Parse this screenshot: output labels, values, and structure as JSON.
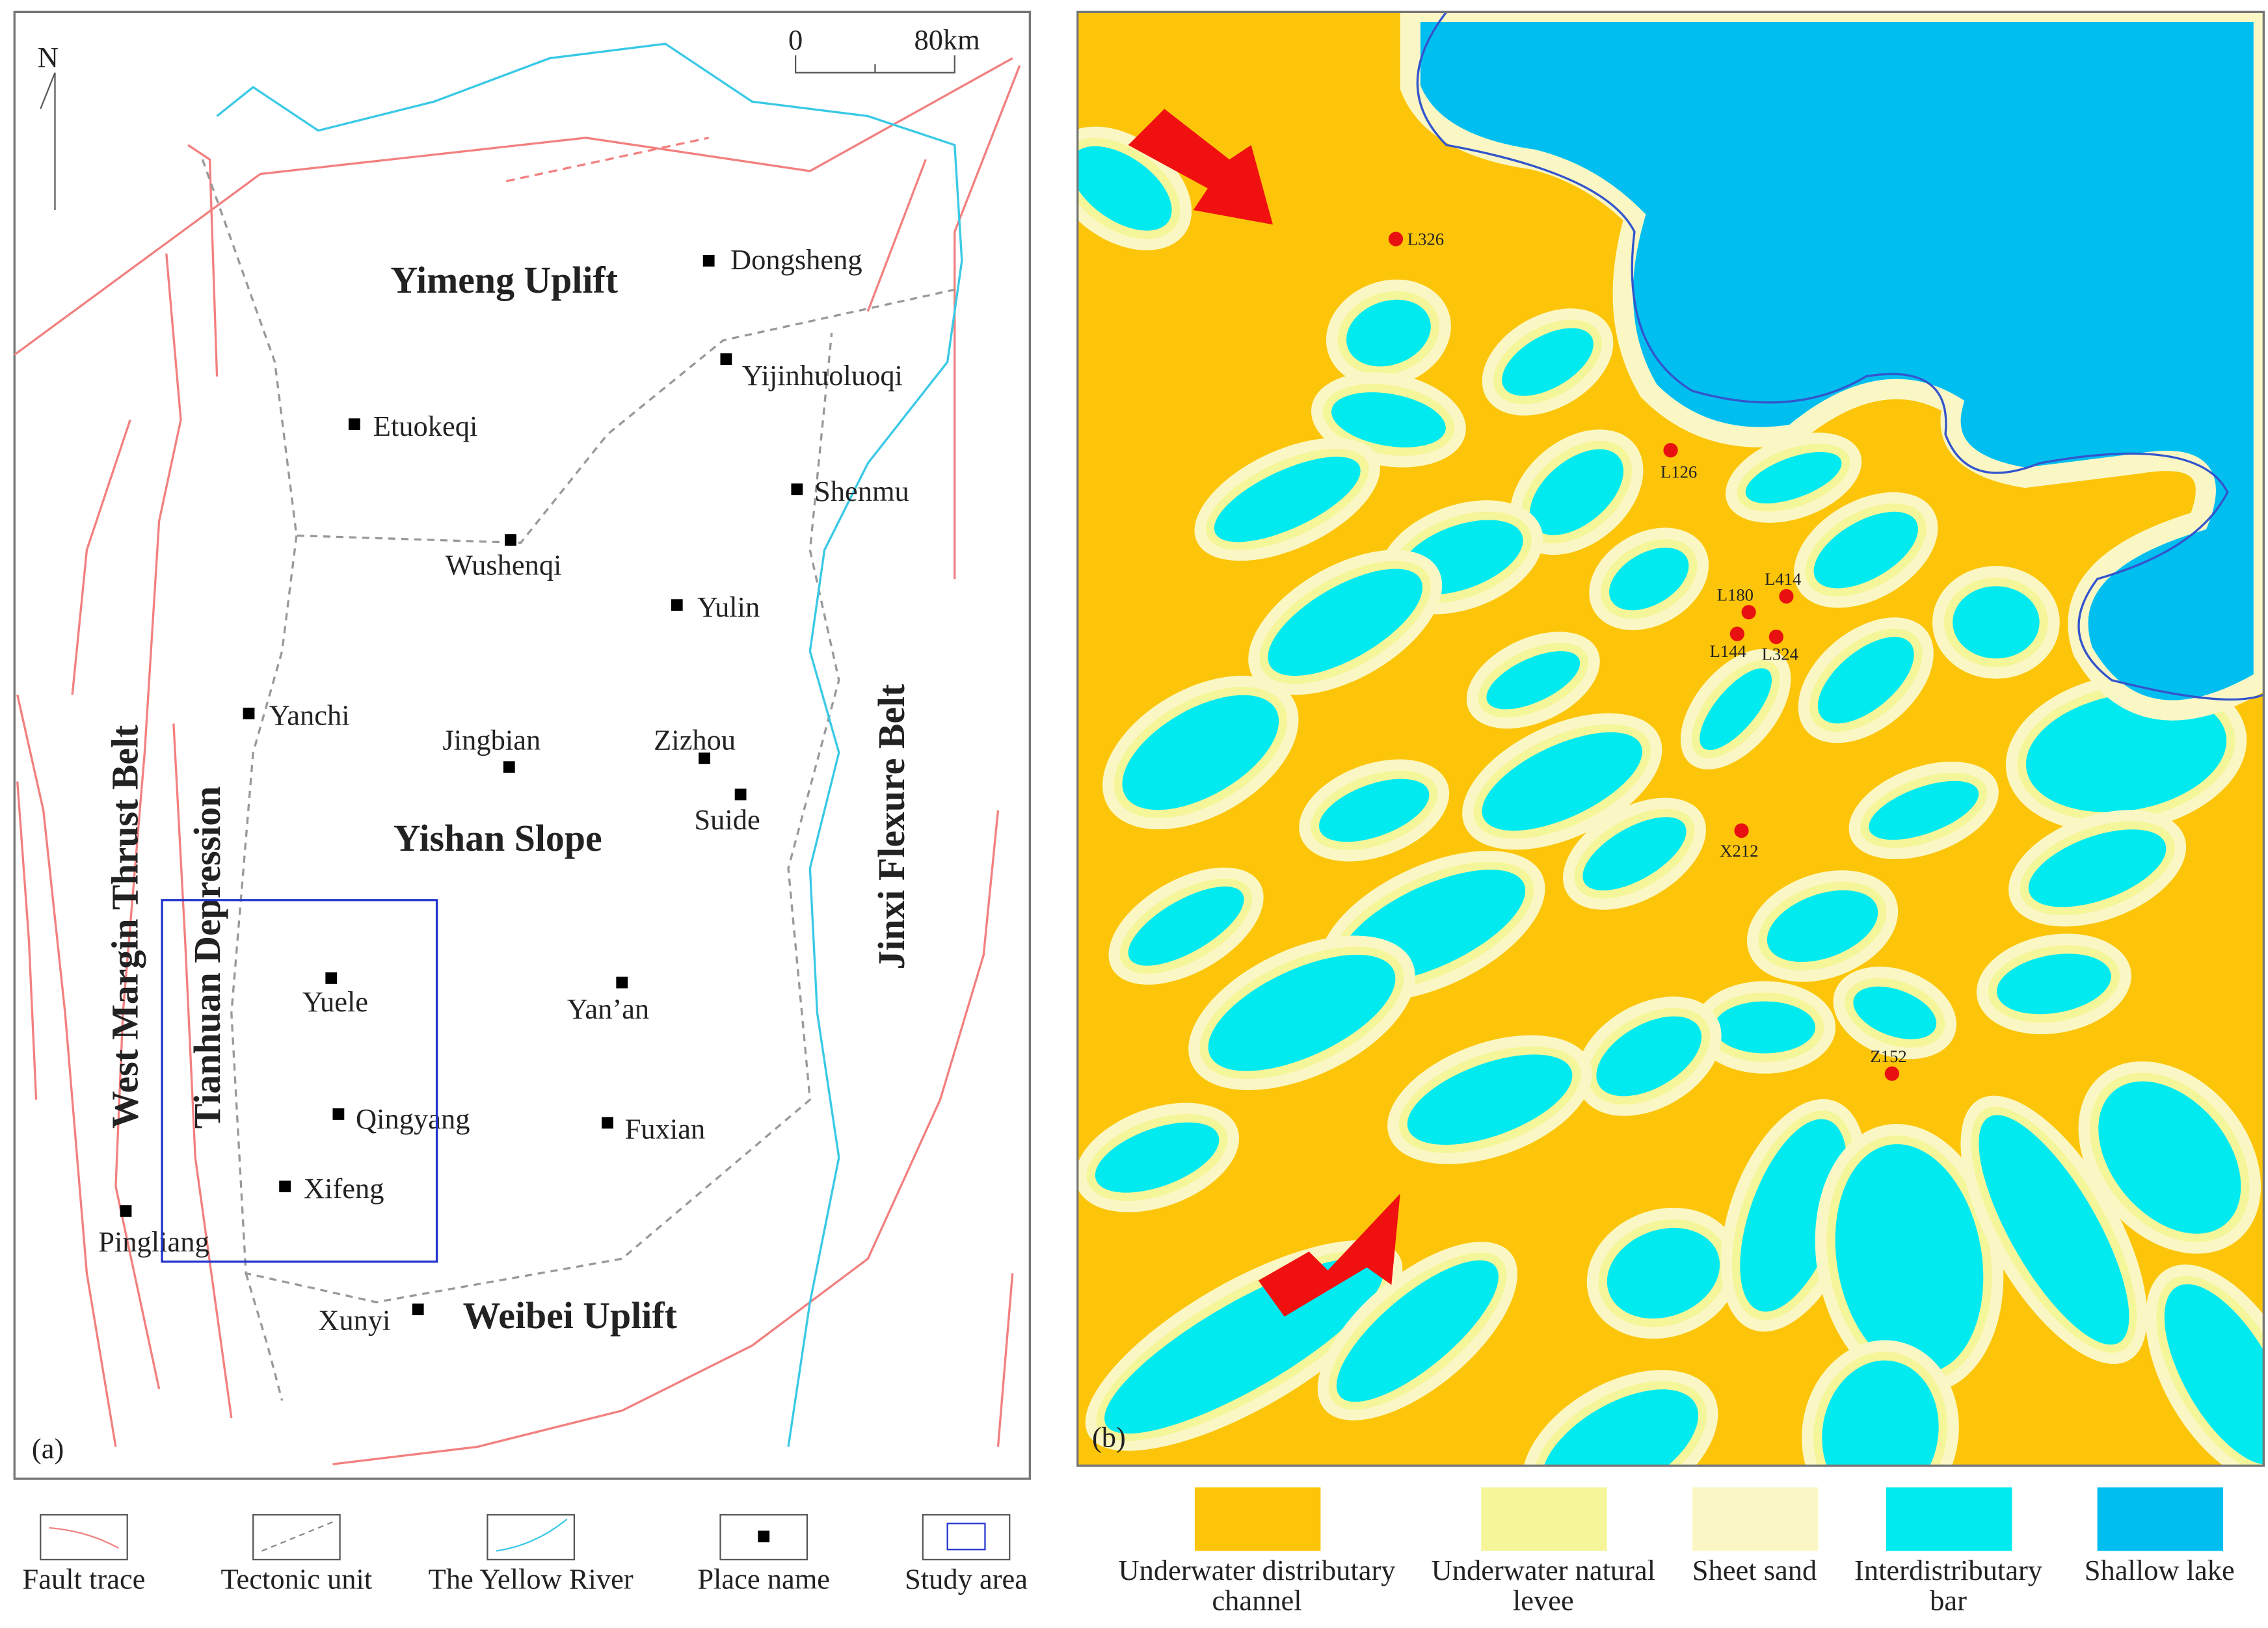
{
  "panel_a": {
    "label": "(a)",
    "north": "N",
    "scale": {
      "start": "0",
      "end": "80km"
    },
    "units": [
      "Yimeng Uplift",
      "Yishan Slope",
      "Weibei Uplift",
      "West Margin Thrust Belt",
      "Tianhuan Depression",
      "Jinxi Flexure Belt"
    ],
    "places": [
      "Dongsheng",
      "Yijinhuoluoqi",
      "Etuokeqi",
      "Shenmu",
      "Wushenqi",
      "Yulin",
      "Yanchi",
      "Jingbian",
      "Zizhou",
      "Suide",
      "Yuele",
      "Yan’an",
      "Qingyang",
      "Fuxian",
      "Xifeng",
      "Pingliang",
      "Xunyi"
    ]
  },
  "legend_a": [
    "Fault trace",
    "Tectonic unit",
    "The Yellow River",
    "Place name",
    "Study area"
  ],
  "panel_b": {
    "label": "(b)",
    "wells": [
      "L326",
      "L126",
      "L414",
      "L180",
      "L144",
      "L324",
      "X212",
      "Z152"
    ]
  },
  "legend_b": [
    [
      "Underwater distributary",
      "channel"
    ],
    [
      "Underwater natural",
      "levee"
    ],
    [
      "Sheet sand"
    ],
    [
      "Interdistributary",
      "bar"
    ],
    [
      "Shallow lake"
    ]
  ]
}
